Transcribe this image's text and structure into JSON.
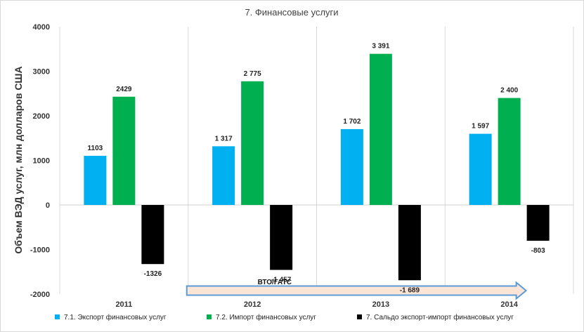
{
  "chart_data": {
    "type": "bar",
    "title": "7. Финансовые услуги",
    "ylabel": "Объем ВЭД услуг, млн долларов США",
    "xlabel": "",
    "categories": [
      "2011",
      "2012",
      "2013",
      "2014"
    ],
    "ylim": [
      -2000,
      4000
    ],
    "yticks": [
      -2000,
      -1000,
      0,
      1000,
      2000,
      3000,
      4000
    ],
    "ytick_labels": [
      "-2000",
      "-1000",
      "0",
      "1000",
      "2000",
      "3000",
      "4000"
    ],
    "grid": "vertical",
    "legend_position": "bottom",
    "series": [
      {
        "name": "7.1. Экспорт финансовых услуг",
        "color": "#00b0f0",
        "values": [
          1103,
          1317,
          1702,
          1597
        ],
        "labels": [
          "1103",
          "1 317",
          "1 702",
          "1 597"
        ]
      },
      {
        "name": "7.2. Импорт финансовых услуг",
        "color": "#00b050",
        "values": [
          2429,
          2775,
          3391,
          2400
        ],
        "labels": [
          "2429",
          "2 775",
          "3 391",
          "2 400"
        ]
      },
      {
        "name": "7. Сальдо экспорт-импорт финансовых услуг",
        "color": "#000000",
        "values": [
          -1326,
          -1457,
          -1689,
          -803
        ],
        "labels": [
          "-1326",
          "-1 457",
          "-1 689",
          "-803"
        ]
      }
    ],
    "annotation": {
      "text": "ВТО/ГАТС",
      "fill_color": "#fce4d6",
      "border_color": "#5b9bd5",
      "from_category": "2012",
      "to_category": "2014"
    }
  }
}
